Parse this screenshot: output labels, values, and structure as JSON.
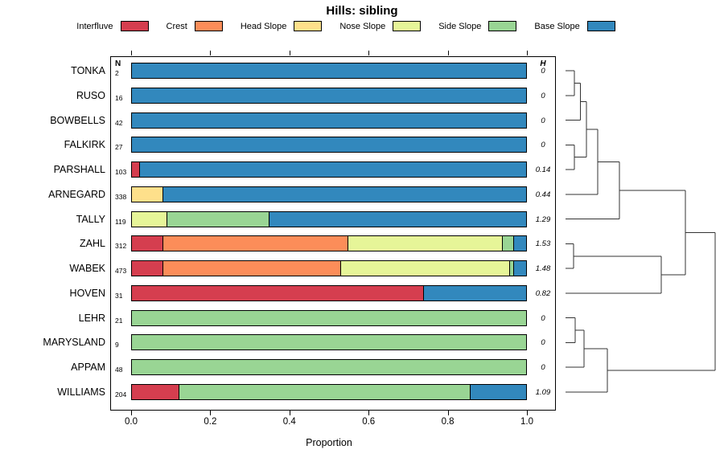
{
  "chart_data": {
    "type": "bar",
    "subtype": "stacked-horizontal-with-dendrogram",
    "title": "Hills: sibling",
    "xlabel": "Proportion",
    "xlim": [
      0,
      1
    ],
    "x_ticks": [
      0.0,
      0.2,
      0.4,
      0.6,
      0.8,
      1.0
    ],
    "grid": false,
    "legend_position": "top",
    "n_header": "N",
    "h_header": "H",
    "series_names": [
      "Interfluve",
      "Crest",
      "Head Slope",
      "Nose Slope",
      "Side Slope",
      "Base Slope"
    ],
    "colors": [
      "#d53e4f",
      "#fc8d59",
      "#fee08b",
      "#e6f598",
      "#99d594",
      "#3288bd"
    ],
    "rows": [
      {
        "name": "TONKA",
        "n": 2,
        "h": "0",
        "values": [
          0,
          0,
          0,
          0,
          0,
          1.0
        ]
      },
      {
        "name": "RUSO",
        "n": 16,
        "h": "0",
        "values": [
          0,
          0,
          0,
          0,
          0,
          1.0
        ]
      },
      {
        "name": "BOWBELLS",
        "n": 42,
        "h": "0",
        "values": [
          0,
          0,
          0,
          0,
          0,
          1.0
        ]
      },
      {
        "name": "FALKIRK",
        "n": 27,
        "h": "0",
        "values": [
          0,
          0,
          0,
          0,
          0,
          1.0
        ]
      },
      {
        "name": "PARSHALL",
        "n": 103,
        "h": "0.14",
        "values": [
          0.02,
          0,
          0,
          0,
          0,
          0.98
        ]
      },
      {
        "name": "ARNEGARD",
        "n": 338,
        "h": "0.44",
        "values": [
          0,
          0,
          0.08,
          0,
          0,
          0.92
        ]
      },
      {
        "name": "TALLY",
        "n": 119,
        "h": "1.29",
        "values": [
          0,
          0,
          0,
          0.09,
          0.26,
          0.65
        ]
      },
      {
        "name": "ZAHL",
        "n": 312,
        "h": "1.53",
        "values": [
          0.08,
          0.47,
          0,
          0.39,
          0.03,
          0.03
        ]
      },
      {
        "name": "WABEK",
        "n": 473,
        "h": "1.48",
        "values": [
          0.08,
          0.45,
          0,
          0.43,
          0.01,
          0.03
        ]
      },
      {
        "name": "HOVEN",
        "n": 31,
        "h": "0.82",
        "values": [
          0.74,
          0,
          0,
          0,
          0,
          0.26
        ]
      },
      {
        "name": "LEHR",
        "n": 21,
        "h": "0",
        "values": [
          0,
          0,
          0,
          0,
          1.0,
          0
        ]
      },
      {
        "name": "MARYSLAND",
        "n": 9,
        "h": "0",
        "values": [
          0,
          0,
          0,
          0,
          1.0,
          0
        ]
      },
      {
        "name": "APPAM",
        "n": 48,
        "h": "0",
        "values": [
          0,
          0,
          0,
          0,
          1.0,
          0
        ]
      },
      {
        "name": "WILLIAMS",
        "n": 204,
        "h": "1.09",
        "values": [
          0.12,
          0,
          0,
          0,
          0.74,
          0.14
        ]
      }
    ],
    "dendrogram": {
      "tree": {
        "d": 1.0,
        "c": [
          {
            "d": 0.8,
            "c": [
              {
                "d": 0.36,
                "c": [
                  {
                    "d": 0.215,
                    "c": [
                      {
                        "d": 0.14,
                        "c": [
                          {
                            "d": 0.1,
                            "c": [
                              {
                                "d": 0.06,
                                "c": [
                                  {
                                    "leaf": 0
                                  },
                                  {
                                    "leaf": 1
                                  }
                                ]
                              },
                              {
                                "leaf": 2
                              }
                            ]
                          },
                          {
                            "d": 0.06,
                            "c": [
                              {
                                "leaf": 3
                              },
                              {
                                "leaf": 4
                              }
                            ]
                          }
                        ]
                      },
                      {
                        "leaf": 5
                      }
                    ]
                  },
                  {
                    "leaf": 6
                  }
                ]
              },
              {
                "d": 0.64,
                "c": [
                  {
                    "d": 0.054,
                    "c": [
                      {
                        "leaf": 7
                      },
                      {
                        "leaf": 8
                      }
                    ]
                  },
                  {
                    "leaf": 9
                  }
                ]
              }
            ]
          },
          {
            "d": 0.28,
            "c": [
              {
                "d": 0.124,
                "c": [
                  {
                    "d": 0.065,
                    "c": [
                      {
                        "leaf": 10
                      },
                      {
                        "leaf": 11
                      }
                    ]
                  },
                  {
                    "leaf": 12
                  }
                ]
              },
              {
                "leaf": 13
              }
            ]
          }
        ]
      }
    }
  }
}
